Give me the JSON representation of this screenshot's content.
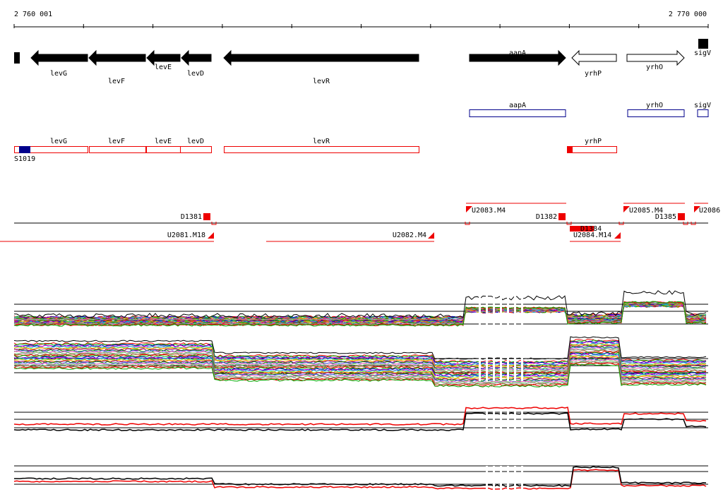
{
  "ruler": {
    "start": "2 760 001",
    "end": "2 770 000"
  },
  "gene_track": {
    "labels": [
      "levG",
      "levF",
      "levE",
      "levD",
      "levR",
      "aapA",
      "yrhP",
      "yrhO",
      "sigV"
    ]
  },
  "blue_track": {
    "labels": [
      "aapA",
      "yrhO",
      "sigV"
    ]
  },
  "red_track": {
    "labels": [
      "levG",
      "levF",
      "levE",
      "levD",
      "levR",
      "yrhP"
    ],
    "feature": "S1019"
  },
  "feature_track": {
    "labels": [
      "D1381",
      "U2081.M18",
      "U2082.M4",
      "U2083.M4",
      "D1382",
      "U2084.M14",
      "D1384",
      "U2085.M4",
      "D1385",
      "U2086"
    ]
  }
}
